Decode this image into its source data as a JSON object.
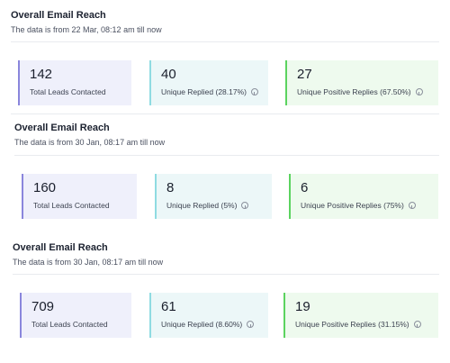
{
  "sections": [
    {
      "title": "Overall Email Reach",
      "subtitle": "The data is from 22 Mar, 08:12 am till now",
      "leads": {
        "value": "142",
        "label": "Total Leads Contacted"
      },
      "replied": {
        "value": "40",
        "label": "Unique Replied (28.17%)"
      },
      "positive": {
        "value": "27",
        "label": "Unique Positive Replies (67.50%)"
      }
    },
    {
      "title": "Overall Email Reach",
      "subtitle": "The data is from 30 Jan, 08:17 am till now",
      "leads": {
        "value": "160",
        "label": "Total Leads Contacted"
      },
      "replied": {
        "value": "8",
        "label": "Unique Replied (5%)"
      },
      "positive": {
        "value": "6",
        "label": "Unique Positive Replies (75%)"
      }
    },
    {
      "title": "Overall Email Reach",
      "subtitle": "The data is from 30 Jan, 08:17 am till now",
      "leads": {
        "value": "709",
        "label": "Total Leads Contacted"
      },
      "replied": {
        "value": "61",
        "label": "Unique Replied (8.60%)"
      },
      "positive": {
        "value": "19",
        "label": "Unique Positive Replies (31.15%)"
      }
    }
  ],
  "colors": {
    "leads_accent": "#8a86dc",
    "replied_accent": "#8fdbe2",
    "positive_accent": "#5bd35f"
  },
  "icons": {
    "info": "info-circle-icon"
  }
}
